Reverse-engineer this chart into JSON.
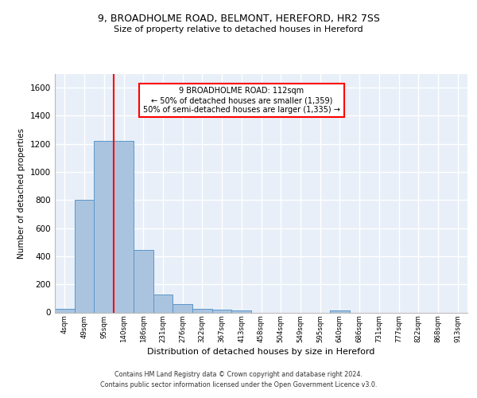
{
  "title1": "9, BROADHOLME ROAD, BELMONT, HEREFORD, HR2 7SS",
  "title2": "Size of property relative to detached houses in Hereford",
  "xlabel": "Distribution of detached houses by size in Hereford",
  "ylabel": "Number of detached properties",
  "categories": [
    "4sqm",
    "49sqm",
    "95sqm",
    "140sqm",
    "186sqm",
    "231sqm",
    "276sqm",
    "322sqm",
    "367sqm",
    "413sqm",
    "458sqm",
    "504sqm",
    "549sqm",
    "595sqm",
    "640sqm",
    "686sqm",
    "731sqm",
    "777sqm",
    "822sqm",
    "868sqm",
    "913sqm"
  ],
  "bar_values": [
    25,
    800,
    1220,
    1220,
    445,
    130,
    60,
    25,
    18,
    15,
    0,
    0,
    0,
    0,
    15,
    0,
    0,
    0,
    0,
    0,
    0
  ],
  "bar_color": "#aac4e0",
  "bar_edge_color": "#5a96c8",
  "red_line_x": 2.5,
  "annotation_text": "9 BROADHOLME ROAD: 112sqm\n← 50% of detached houses are smaller (1,359)\n50% of semi-detached houses are larger (1,335) →",
  "annotation_box_color": "white",
  "annotation_box_edge_color": "red",
  "background_color": "#e8eff8",
  "grid_color": "white",
  "ylim": [
    0,
    1700
  ],
  "yticks": [
    0,
    200,
    400,
    600,
    800,
    1000,
    1200,
    1400,
    1600
  ],
  "footer1": "Contains HM Land Registry data © Crown copyright and database right 2024.",
  "footer2": "Contains public sector information licensed under the Open Government Licence v3.0."
}
